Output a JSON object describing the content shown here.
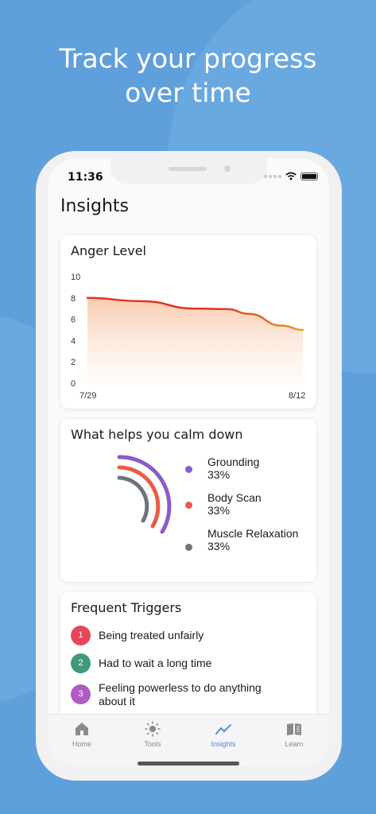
{
  "headline": {
    "line1": "Track your progress",
    "line2": "over time"
  },
  "status_bar": {
    "time": "11:36"
  },
  "page": {
    "title": "Insights"
  },
  "anger_card": {
    "title": "Anger Level"
  },
  "chart_data": {
    "type": "area",
    "title": "Anger Level",
    "x_tick_labels": [
      "7/29",
      "8/12"
    ],
    "y_ticks": [
      0,
      2,
      4,
      6,
      8,
      10
    ],
    "ylim": [
      0,
      10
    ],
    "x": [
      0,
      0.25,
      0.5,
      0.65,
      0.75,
      0.9,
      1
    ],
    "values": [
      8,
      7.7,
      7,
      6.95,
      6.5,
      5.4,
      5
    ],
    "grid": false,
    "line_colors": [
      "#e2321f",
      "#ea9b24"
    ],
    "fill_color": "#f8c8a9"
  },
  "calm_card": {
    "title": "What helps you calm down",
    "items": [
      {
        "name": "Grounding",
        "pct": "33%",
        "color": "#8a5cc9"
      },
      {
        "name": "Body Scan",
        "pct": "33%",
        "color": "#e85c4a"
      },
      {
        "name": "Muscle Relaxation",
        "pct": "33%",
        "color": "#6b7580"
      }
    ]
  },
  "triggers_card": {
    "title": "Frequent Triggers",
    "items": [
      {
        "num": "1",
        "text": "Being treated unfairly",
        "color": "#e5475a"
      },
      {
        "num": "2",
        "text": "Had to wait a long time",
        "color": "#3e9a7a"
      },
      {
        "num": "3",
        "text": "Feeling powerless to do anything about it",
        "color": "#b05ac4"
      }
    ]
  },
  "tabbar": {
    "tabs": [
      {
        "label": "Home",
        "icon": "home-icon"
      },
      {
        "label": "Tools",
        "icon": "sun-icon"
      },
      {
        "label": "Insights",
        "icon": "trend-icon",
        "active": true
      },
      {
        "label": "Learn",
        "icon": "book-icon"
      }
    ],
    "active_color": "#4a90e2"
  },
  "colors": {
    "background": "#5f9fdc",
    "accent": "#4a90e2"
  }
}
